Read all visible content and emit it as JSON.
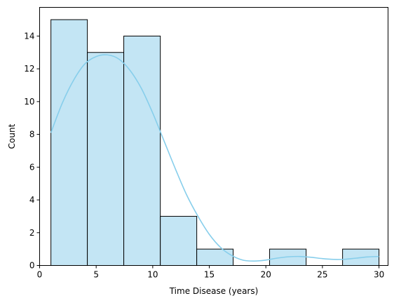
{
  "chart_data": {
    "type": "bar",
    "subtype": "histogram-with-kde",
    "title": "",
    "xlabel": "Time Disease (years)",
    "ylabel": "Count",
    "xlim": [
      0.0,
      30.8
    ],
    "ylim": [
      0,
      15.75
    ],
    "xticks": [
      0,
      5,
      10,
      15,
      20,
      25,
      30
    ],
    "yticks": [
      0,
      2,
      4,
      6,
      8,
      10,
      12,
      14
    ],
    "bins": [
      {
        "x0": 1.0,
        "x1": 4.22,
        "count": 15
      },
      {
        "x0": 4.22,
        "x1": 7.44,
        "count": 13
      },
      {
        "x0": 7.44,
        "x1": 10.67,
        "count": 14
      },
      {
        "x0": 10.67,
        "x1": 13.89,
        "count": 3
      },
      {
        "x0": 13.89,
        "x1": 17.11,
        "count": 1
      },
      {
        "x0": 17.11,
        "x1": 20.33,
        "count": 0
      },
      {
        "x0": 20.33,
        "x1": 23.56,
        "count": 1
      },
      {
        "x0": 23.56,
        "x1": 26.78,
        "count": 0
      },
      {
        "x0": 26.78,
        "x1": 30.0,
        "count": 1
      }
    ],
    "kde": {
      "x": [
        1.0,
        2.0,
        3.0,
        4.0,
        5.0,
        6.0,
        7.0,
        8.0,
        9.0,
        10.0,
        11.0,
        12.0,
        13.0,
        14.0,
        15.0,
        16.0,
        17.0,
        18.0,
        19.0,
        20.0,
        21.0,
        22.0,
        23.0,
        24.0,
        25.0,
        26.0,
        27.0,
        28.0,
        29.0,
        30.0
      ],
      "y": [
        8.1,
        9.9,
        11.3,
        12.3,
        12.75,
        12.85,
        12.6,
        11.9,
        10.8,
        9.3,
        7.6,
        5.9,
        4.3,
        3.0,
        1.9,
        1.1,
        0.6,
        0.32,
        0.27,
        0.33,
        0.45,
        0.53,
        0.55,
        0.5,
        0.42,
        0.37,
        0.38,
        0.45,
        0.52,
        0.55
      ]
    },
    "grid": false,
    "legend": "none"
  },
  "colors": {
    "bar_fill": "#C3E5F4",
    "bar_edge": "#000000",
    "kde_line": "#87CEEB",
    "axis": "#000000"
  }
}
